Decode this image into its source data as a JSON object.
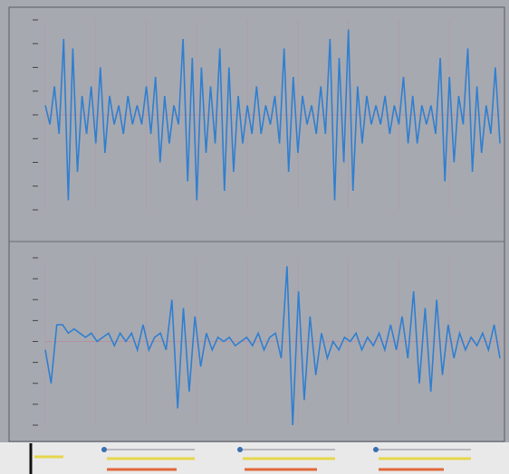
{
  "panels": [
    {
      "color": "#2f7fd0",
      "values": [
        0.1,
        -0.1,
        0.3,
        -0.2,
        0.8,
        -0.9,
        0.7,
        -0.6,
        0.2,
        -0.2,
        0.3,
        -0.3,
        0.5,
        -0.4,
        0.2,
        -0.1,
        0.1,
        -0.2,
        0.2,
        -0.1,
        0.1,
        -0.1,
        0.3,
        -0.2,
        0.4,
        -0.5,
        0.2,
        -0.3,
        0.1,
        -0.1,
        0.8,
        -0.7,
        0.6,
        -0.9,
        0.5,
        -0.4,
        0.3,
        -0.3,
        0.7,
        -0.8,
        0.5,
        -0.6,
        0.2,
        -0.3,
        0.1,
        -0.2,
        0.3,
        -0.2,
        0.1,
        -0.1,
        0.2,
        -0.3,
        0.7,
        -0.6,
        0.4,
        -0.4,
        0.2,
        -0.1,
        0.1,
        -0.2,
        0.3,
        -0.2,
        0.8,
        -0.9,
        0.6,
        -0.5,
        0.9,
        -0.8,
        0.3,
        -0.3,
        0.2,
        -0.1,
        0.1,
        -0.1,
        0.2,
        -0.2,
        0.1,
        -0.1,
        0.4,
        -0.3,
        0.2,
        -0.3,
        0.1,
        -0.1,
        0.1,
        -0.2,
        0.6,
        -0.7,
        0.4,
        -0.5,
        0.2,
        -0.1,
        0.7,
        -0.6,
        0.3,
        -0.4,
        0.1,
        -0.2,
        0.5,
        -0.3
      ]
    },
    {
      "color": "#2f7fd0",
      "values": [
        -0.1,
        -0.5,
        0.2,
        0.2,
        0.1,
        0.15,
        0.1,
        0.05,
        0.1,
        0.0,
        0.05,
        0.1,
        -0.05,
        0.1,
        0.0,
        0.1,
        -0.1,
        0.2,
        -0.1,
        0.05,
        0.1,
        -0.1,
        0.5,
        -0.8,
        0.4,
        -0.6,
        0.3,
        -0.3,
        0.1,
        -0.1,
        0.05,
        0.0,
        0.05,
        -0.05,
        0.0,
        0.05,
        -0.05,
        0.1,
        -0.1,
        0.05,
        0.1,
        -0.2,
        0.9,
        -1.0,
        0.6,
        -0.7,
        0.3,
        -0.4,
        0.1,
        -0.2,
        0.0,
        -0.1,
        0.05,
        0.0,
        0.1,
        -0.1,
        0.05,
        -0.05,
        0.1,
        -0.1,
        0.2,
        -0.1,
        0.3,
        -0.2,
        0.6,
        -0.5,
        0.4,
        -0.6,
        0.5,
        -0.4,
        0.2,
        -0.2,
        0.1,
        -0.1,
        0.05,
        -0.05,
        0.1,
        -0.1,
        0.2,
        -0.2
      ]
    }
  ]
}
